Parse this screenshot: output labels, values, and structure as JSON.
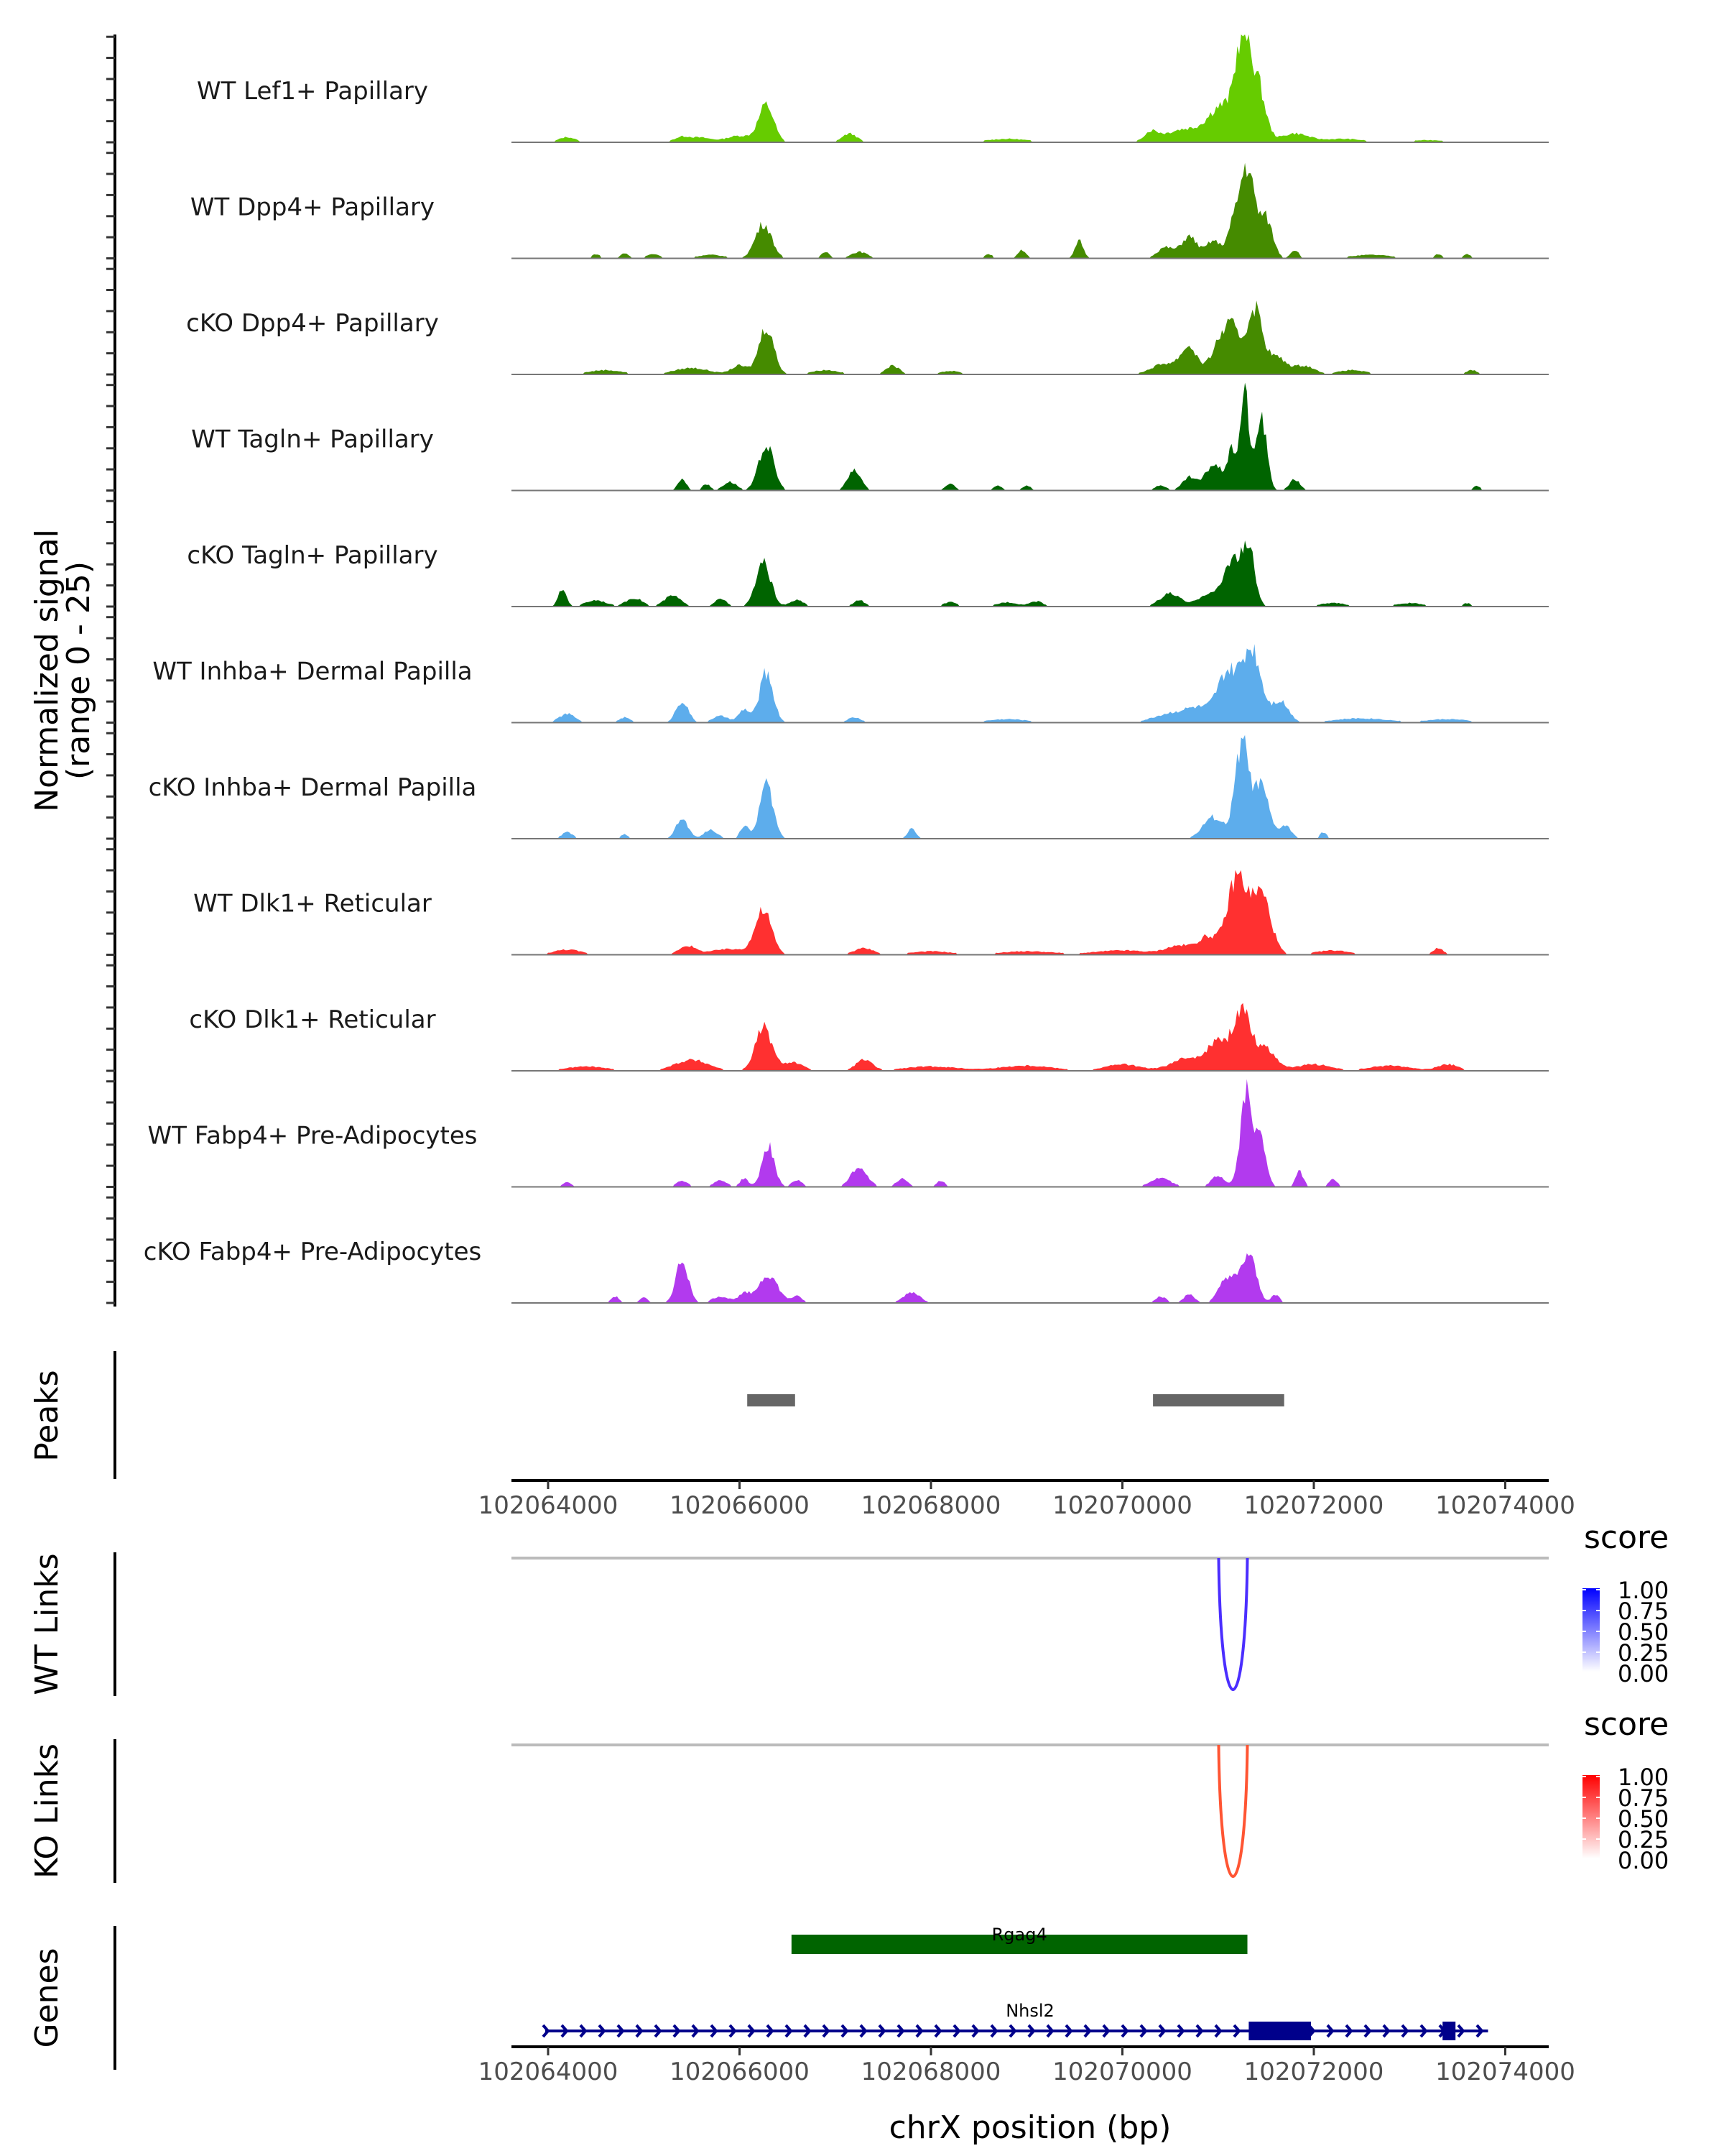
{
  "chart_data": {
    "type": "area",
    "title": "",
    "region": {
      "chrom": "chrX",
      "start": 102063650,
      "end": 102074500
    },
    "ylabel_line1": "Normalized signal",
    "ylabel_line2": "(range 0 - 25)",
    "ylim": [
      0,
      25
    ],
    "xlabel": "chrX position (bp)",
    "x_ticks": [
      102064000,
      102066000,
      102068000,
      102070000,
      102072000,
      102074000
    ],
    "x_tick_labels": [
      "102064000",
      "102066000",
      "102068000",
      "102070000",
      "102072000",
      "102074000"
    ],
    "coverage_tracks": [
      {
        "name": "WT Lef1+ Papillary",
        "color": "#66CC00",
        "peaks": [
          [
            102064200,
            120,
            1.2
          ],
          [
            102065400,
            120,
            1.2
          ],
          [
            102065600,
            150,
            1.0
          ],
          [
            102066000,
            200,
            1.5
          ],
          [
            102066280,
            110,
            8.5
          ],
          [
            102067150,
            110,
            2.0
          ],
          [
            102068800,
            300,
            0.8
          ],
          [
            102070300,
            100,
            2.0
          ],
          [
            102070650,
            300,
            3.0
          ],
          [
            102071050,
            200,
            8.0
          ],
          [
            102071250,
            100,
            20.0
          ],
          [
            102071400,
            120,
            14.0
          ],
          [
            102071800,
            200,
            2.0
          ],
          [
            102072300,
            300,
            0.8
          ],
          [
            102073200,
            300,
            0.5
          ]
        ]
      },
      {
        "name": "WT Dpp4+ Papillary",
        "color": "#458B00",
        "peaks": [
          [
            102064500,
            60,
            1.0
          ],
          [
            102064800,
            60,
            1.2
          ],
          [
            102065100,
            100,
            1.0
          ],
          [
            102065700,
            200,
            0.8
          ],
          [
            102066250,
            120,
            8.0
          ],
          [
            102066900,
            60,
            1.5
          ],
          [
            102067250,
            120,
            1.5
          ],
          [
            102068600,
            60,
            1.0
          ],
          [
            102068950,
            60,
            2.0
          ],
          [
            102069550,
            60,
            4.0
          ],
          [
            102070450,
            120,
            2.5
          ],
          [
            102070700,
            120,
            5.0
          ],
          [
            102070950,
            100,
            4.0
          ],
          [
            102071150,
            90,
            6.0
          ],
          [
            102071300,
            110,
            21.0
          ],
          [
            102071500,
            100,
            9.0
          ],
          [
            102071800,
            60,
            2.0
          ],
          [
            102072600,
            300,
            0.8
          ],
          [
            102073300,
            60,
            1.0
          ],
          [
            102073600,
            60,
            1.0
          ]
        ]
      },
      {
        "name": "cKO Dpp4+ Papillary",
        "color": "#458B00",
        "peaks": [
          [
            102064600,
            250,
            1.0
          ],
          [
            102065500,
            250,
            1.5
          ],
          [
            102066000,
            120,
            2.0
          ],
          [
            102066280,
            110,
            11.0
          ],
          [
            102066900,
            200,
            1.0
          ],
          [
            102067600,
            100,
            2.0
          ],
          [
            102068200,
            150,
            0.8
          ],
          [
            102070450,
            200,
            2.5
          ],
          [
            102070700,
            120,
            6.0
          ],
          [
            102071000,
            120,
            6.0
          ],
          [
            102071150,
            120,
            10.0
          ],
          [
            102071380,
            110,
            15.0
          ],
          [
            102071600,
            150,
            4.0
          ],
          [
            102071900,
            150,
            2.0
          ],
          [
            102072400,
            200,
            1.0
          ],
          [
            102073650,
            80,
            1.0
          ]
        ]
      },
      {
        "name": "WT Tagln+ Papillary",
        "color": "#006400",
        "peaks": [
          [
            102065400,
            60,
            2.8
          ],
          [
            102065650,
            60,
            1.5
          ],
          [
            102065900,
            100,
            2.0
          ],
          [
            102066280,
            110,
            10.5
          ],
          [
            102067200,
            100,
            4.5
          ],
          [
            102068200,
            70,
            1.5
          ],
          [
            102068700,
            60,
            1.2
          ],
          [
            102069000,
            60,
            1.2
          ],
          [
            102070400,
            80,
            1.2
          ],
          [
            102070700,
            100,
            3.0
          ],
          [
            102070950,
            120,
            6.0
          ],
          [
            102071150,
            80,
            9.0
          ],
          [
            102071280,
            60,
            23.0
          ],
          [
            102071450,
            80,
            17.0
          ],
          [
            102071800,
            80,
            2.5
          ],
          [
            102073700,
            60,
            1.0
          ]
        ]
      },
      {
        "name": "cKO Tagln+ Papillary",
        "color": "#006400",
        "peaks": [
          [
            102064150,
            60,
            4.0
          ],
          [
            102064500,
            150,
            1.5
          ],
          [
            102064900,
            120,
            2.0
          ],
          [
            102065300,
            120,
            2.5
          ],
          [
            102065800,
            80,
            2.0
          ],
          [
            102066250,
            110,
            10.0
          ],
          [
            102066600,
            100,
            1.5
          ],
          [
            102067250,
            80,
            1.5
          ],
          [
            102068200,
            100,
            1.0
          ],
          [
            102068800,
            150,
            1.0
          ],
          [
            102069100,
            100,
            1.2
          ],
          [
            102070500,
            150,
            3.0
          ],
          [
            102070900,
            150,
            3.0
          ],
          [
            102071150,
            120,
            11.0
          ],
          [
            102071320,
            90,
            13.0
          ],
          [
            102072200,
            200,
            0.8
          ],
          [
            102073000,
            200,
            0.8
          ],
          [
            102073600,
            60,
            0.8
          ]
        ]
      },
      {
        "name": "WT Inhba+ Dermal Papilla",
        "color": "#5DADEC",
        "peaks": [
          [
            102064200,
            120,
            2.0
          ],
          [
            102064800,
            80,
            1.2
          ],
          [
            102065400,
            90,
            5.0
          ],
          [
            102065800,
            120,
            1.5
          ],
          [
            102066050,
            80,
            3.0
          ],
          [
            102066280,
            100,
            11.5
          ],
          [
            102067200,
            100,
            1.2
          ],
          [
            102068800,
            300,
            0.8
          ],
          [
            102070500,
            250,
            2.0
          ],
          [
            102070800,
            200,
            3.0
          ],
          [
            102071100,
            150,
            11.0
          ],
          [
            102071350,
            140,
            17.0
          ],
          [
            102071650,
            120,
            5.0
          ],
          [
            102072500,
            400,
            1.0
          ],
          [
            102073400,
            300,
            0.8
          ]
        ]
      },
      {
        "name": "cKO Inhba+ Dermal Papilla",
        "color": "#5DADEC",
        "peaks": [
          [
            102064200,
            80,
            1.5
          ],
          [
            102064800,
            60,
            1.0
          ],
          [
            102065400,
            90,
            4.5
          ],
          [
            102065700,
            100,
            2.0
          ],
          [
            102066050,
            60,
            3.0
          ],
          [
            102066280,
            100,
            12.5
          ],
          [
            102067800,
            60,
            2.5
          ],
          [
            102070950,
            150,
            5.0
          ],
          [
            102071250,
            100,
            22.0
          ],
          [
            102071450,
            110,
            12.0
          ],
          [
            102071700,
            90,
            3.0
          ],
          [
            102072100,
            50,
            1.5
          ]
        ]
      },
      {
        "name": "WT Dlk1+ Reticular",
        "color": "#FF3030",
        "peaks": [
          [
            102064200,
            200,
            1.2
          ],
          [
            102065450,
            120,
            2.0
          ],
          [
            102065900,
            300,
            1.3
          ],
          [
            102066250,
            120,
            10.0
          ],
          [
            102067300,
            150,
            1.5
          ],
          [
            102068000,
            300,
            0.8
          ],
          [
            102069000,
            400,
            0.8
          ],
          [
            102070000,
            400,
            1.0
          ],
          [
            102070600,
            200,
            2.0
          ],
          [
            102070900,
            150,
            4.0
          ],
          [
            102071200,
            140,
            18.0
          ],
          [
            102071450,
            140,
            14.0
          ],
          [
            102072200,
            250,
            1.0
          ],
          [
            102073300,
            80,
            1.5
          ]
        ]
      },
      {
        "name": "cKO Dlk1+ Reticular",
        "color": "#FF3030",
        "peaks": [
          [
            102064400,
            300,
            1.0
          ],
          [
            102065500,
            250,
            2.5
          ],
          [
            102066250,
            120,
            10.0
          ],
          [
            102066550,
            150,
            2.0
          ],
          [
            102067300,
            120,
            2.5
          ],
          [
            102068000,
            400,
            1.0
          ],
          [
            102069000,
            400,
            1.2
          ],
          [
            102070000,
            250,
            1.5
          ],
          [
            102070700,
            250,
            3.0
          ],
          [
            102071000,
            150,
            6.0
          ],
          [
            102071250,
            130,
            14.0
          ],
          [
            102071500,
            150,
            5.0
          ],
          [
            102072000,
            250,
            1.5
          ],
          [
            102072800,
            300,
            1.2
          ],
          [
            102073400,
            150,
            1.5
          ]
        ]
      },
      {
        "name": "WT Fabp4+ Pre-Adipocytes",
        "color": "#B23AEE",
        "peaks": [
          [
            102064200,
            60,
            1.2
          ],
          [
            102065400,
            80,
            1.5
          ],
          [
            102065800,
            100,
            1.5
          ],
          [
            102066050,
            60,
            2.0
          ],
          [
            102066300,
            90,
            9.5
          ],
          [
            102066600,
            80,
            1.5
          ],
          [
            102067250,
            120,
            4.5
          ],
          [
            102067700,
            80,
            2.0
          ],
          [
            102068100,
            60,
            1.5
          ],
          [
            102070400,
            150,
            2.0
          ],
          [
            102071000,
            100,
            2.5
          ],
          [
            102071300,
            90,
            22.0
          ],
          [
            102071450,
            80,
            10.0
          ],
          [
            102071850,
            60,
            3.5
          ],
          [
            102072200,
            60,
            2.0
          ]
        ]
      },
      {
        "name": "cKO Fabp4+ Pre-Adipocytes",
        "color": "#B23AEE",
        "peaks": [
          [
            102064700,
            60,
            1.5
          ],
          [
            102065000,
            60,
            1.2
          ],
          [
            102065400,
            90,
            10.0
          ],
          [
            102065800,
            120,
            1.5
          ],
          [
            102066050,
            100,
            2.0
          ],
          [
            102066300,
            140,
            6.5
          ],
          [
            102066600,
            80,
            1.5
          ],
          [
            102067800,
            120,
            2.5
          ],
          [
            102070400,
            80,
            1.5
          ],
          [
            102070700,
            80,
            2.0
          ],
          [
            102071100,
            120,
            6.0
          ],
          [
            102071320,
            110,
            11.0
          ],
          [
            102071600,
            60,
            2.0
          ]
        ]
      }
    ],
    "peaks_track": {
      "label": "Peaks",
      "color": "#666666",
      "regions": [
        [
          102066080,
          102066580
        ],
        [
          102070320,
          102071690
        ]
      ]
    },
    "links_tracks": [
      {
        "label": "WT Links",
        "color": "#4B2EFF",
        "legend_title": "score",
        "legend_ticks": [
          "1.00",
          "0.75",
          "0.50",
          "0.25",
          "0.00"
        ],
        "gradient": [
          "#0000FF",
          "#FFFFFF"
        ],
        "links": [
          {
            "start": 102071006,
            "end": 102071306,
            "score": 0.85
          }
        ]
      },
      {
        "label": "KO Links",
        "color": "#FF5533",
        "legend_title": "score",
        "legend_ticks": [
          "1.00",
          "0.75",
          "0.50",
          "0.25",
          "0.00"
        ],
        "gradient": [
          "#FF0000",
          "#FFFFFF"
        ],
        "links": [
          {
            "start": 102071006,
            "end": 102071306,
            "score": 0.8
          }
        ]
      }
    ],
    "genes_track": {
      "label": "Genes",
      "genes": [
        {
          "name": "Rgag4",
          "strand": "-",
          "color": "#006400",
          "start": 102066543,
          "end": 102071306,
          "exons": [
            [
              102066543,
              102071306
            ]
          ]
        },
        {
          "name": "Nhsl2",
          "strand": "+",
          "color": "#00008B",
          "start": 102063970,
          "end": 102073820,
          "exons": [
            [
              102071320,
              102071970
            ],
            [
              102073345,
              102073480
            ]
          ]
        }
      ]
    }
  }
}
